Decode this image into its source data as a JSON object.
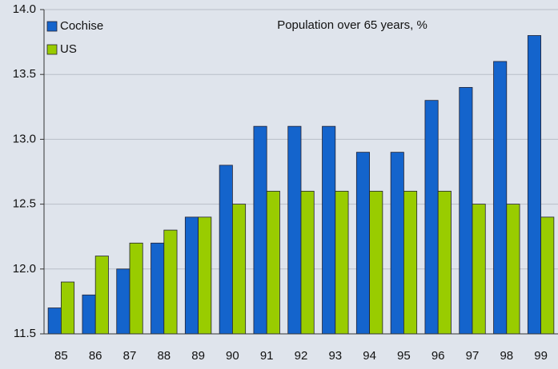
{
  "chart_data": {
    "type": "bar",
    "title": "Population over 65 years, %",
    "categories": [
      "85",
      "86",
      "87",
      "88",
      "89",
      "90",
      "91",
      "92",
      "93",
      "94",
      "95",
      "96",
      "97",
      "98",
      "99"
    ],
    "series": [
      {
        "name": "Cochise",
        "color": "#1464cc",
        "values": [
          11.7,
          11.8,
          12.0,
          12.2,
          12.4,
          12.8,
          13.1,
          13.1,
          13.1,
          12.9,
          12.9,
          13.3,
          13.4,
          13.6,
          13.8
        ]
      },
      {
        "name": "US",
        "color": "#99cc00",
        "values": [
          11.9,
          12.1,
          12.2,
          12.3,
          12.4,
          12.5,
          12.6,
          12.6,
          12.6,
          12.6,
          12.6,
          12.6,
          12.5,
          12.5,
          12.4
        ]
      }
    ],
    "ylim": [
      11.5,
      14.0
    ],
    "yticks": [
      11.5,
      {
        "value": 12,
        "label": "12.0"
      },
      12.5,
      {
        "value": 13,
        "label": "13.0"
      },
      13.5,
      {
        "value": 14,
        "label": "14.0"
      }
    ],
    "grid": true,
    "legend": "upper left"
  }
}
